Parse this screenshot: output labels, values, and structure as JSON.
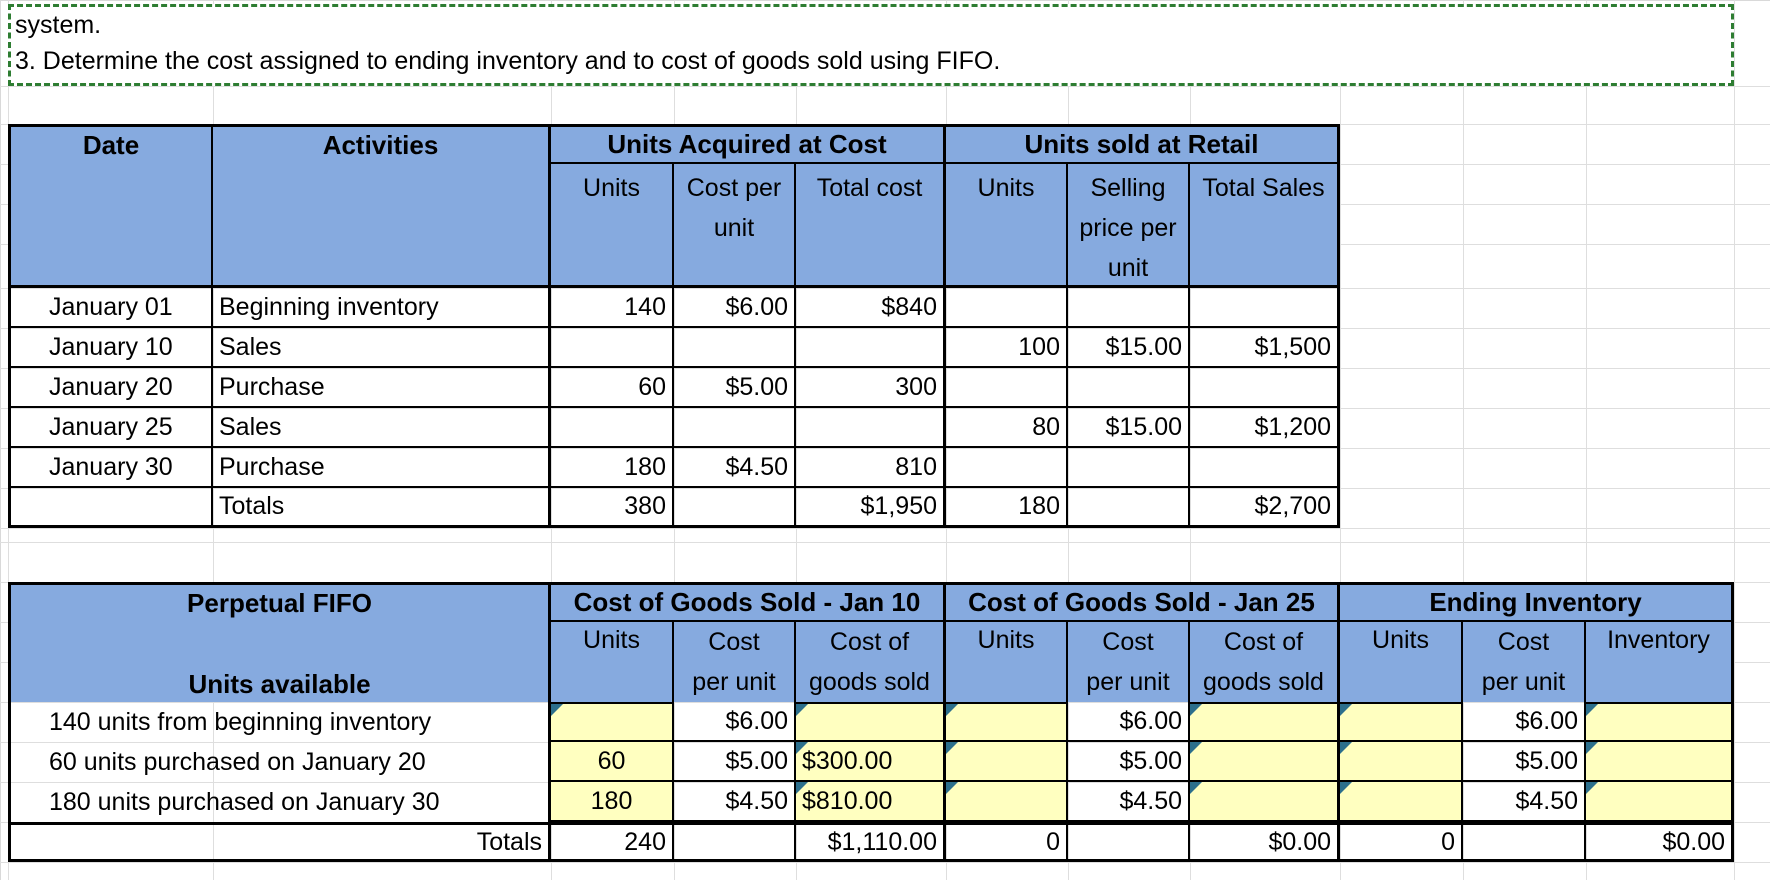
{
  "instructions": {
    "line1": "system.",
    "line2": "3. Determine the cost assigned to ending inventory and to cost of goods sold using FIFO."
  },
  "table1": {
    "headers": {
      "date": "Date",
      "activities": "Activities",
      "acquired": "Units Acquired at Cost",
      "sold": "Units sold at Retail",
      "units": "Units",
      "cost_per_unit": "Cost per unit",
      "total_cost": "Total cost",
      "units2": "Units",
      "selling_price": "Selling price per unit",
      "total_sales": "Total Sales"
    },
    "rows": [
      {
        "date": "January 01",
        "activity": "Beginning inventory",
        "units": "140",
        "cpu": "$6.00",
        "tc": "$840",
        "su": "",
        "sp": "",
        "ts": ""
      },
      {
        "date": "January 10",
        "activity": "Sales",
        "units": "",
        "cpu": "",
        "tc": "",
        "su": "100",
        "sp": "$15.00",
        "ts": "$1,500"
      },
      {
        "date": "January 20",
        "activity": "Purchase",
        "units": "60",
        "cpu": "$5.00",
        "tc": "300",
        "su": "",
        "sp": "",
        "ts": ""
      },
      {
        "date": "January 25",
        "activity": "Sales",
        "units": "",
        "cpu": "",
        "tc": "",
        "su": "80",
        "sp": "$15.00",
        "ts": "$1,200"
      },
      {
        "date": "January 30",
        "activity": "Purchase",
        "units": "180",
        "cpu": "$4.50",
        "tc": "810",
        "su": "",
        "sp": "",
        "ts": ""
      },
      {
        "date": "",
        "activity": "Totals",
        "units": "380",
        "cpu": "",
        "tc": "$1,950",
        "su": "180",
        "sp": "",
        "ts": "$2,700"
      }
    ]
  },
  "table2": {
    "headers": {
      "perpetual": "Perpetual FIFO",
      "units_available": "Units available",
      "cogs_jan10": "Cost of Goods Sold - Jan 10",
      "cogs_jan25": "Cost of Goods Sold - Jan 25",
      "ending": "Ending Inventory",
      "units": "Units",
      "cost_l1": "Cost",
      "cost_l2": "per unit",
      "cog_l1": "Cost of",
      "cog_l2": "goods sold",
      "inventory": "Inventory"
    },
    "rows": [
      {
        "label": "140 units from beginning inventory",
        "u1": "",
        "c1": "$6.00",
        "g1": "",
        "u2": "",
        "c2": "$6.00",
        "g2": "",
        "u3": "",
        "c3": "$6.00",
        "g3": ""
      },
      {
        "label": "60 units purchased on January 20",
        "u1": "60",
        "c1": "$5.00",
        "g1": "$300.00",
        "u2": "",
        "c2": "$5.00",
        "g2": "",
        "u3": "",
        "c3": "$5.00",
        "g3": ""
      },
      {
        "label": "180 units purchased on January 30",
        "u1": "180",
        "c1": "$4.50",
        "g1": "$810.00",
        "u2": "",
        "c2": "$4.50",
        "g2": "",
        "u3": "",
        "c3": "$4.50",
        "g3": ""
      }
    ],
    "totals": {
      "label": "Totals",
      "u1": "240",
      "g1": "$1,110.00",
      "u2": "0",
      "g2": "$0.00",
      "u3": "0",
      "g3": "$0.00"
    }
  }
}
